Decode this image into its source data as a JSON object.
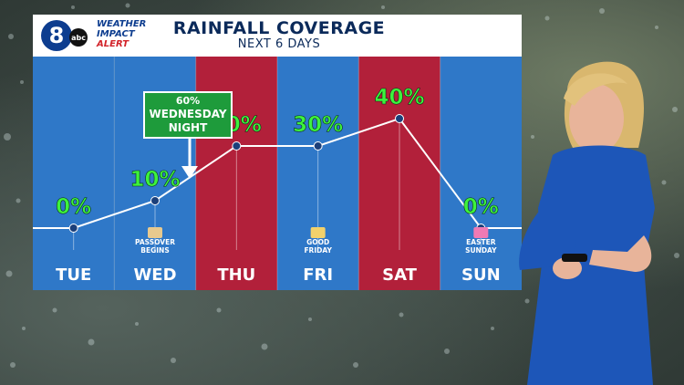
{
  "header": {
    "station": "8",
    "network": "abc",
    "brand_line1": "WEATHER",
    "brand_line2": "IMPACT",
    "brand_line3": "ALERT",
    "title": "RAINFALL COVERAGE",
    "subtitle": "NEXT 6 DAYS"
  },
  "callout": {
    "line1": "60%",
    "line2": "WEDNESDAY",
    "line3": "NIGHT"
  },
  "events": [
    {
      "day": "WED",
      "label1": "PASSOVER",
      "label2": "BEGINS",
      "icon": "matzah-icon"
    },
    {
      "day": "FRI",
      "label1": "GOOD",
      "label2": "FRIDAY",
      "icon": "cross-icon"
    },
    {
      "day": "SUN",
      "label1": "EASTER",
      "label2": "SUNDAY",
      "icon": "easter-egg-icon"
    }
  ],
  "colors": {
    "dry_column": "#2f78c8",
    "wet_column": "#b2203a",
    "value_text": "#3df23d",
    "line": "#ffffff",
    "point": "#1b3f7a"
  },
  "chart_data": {
    "type": "line",
    "title": "RAINFALL COVERAGE",
    "subtitle": "NEXT 6 DAYS",
    "categories": [
      "TUE",
      "WED",
      "THU",
      "FRI",
      "SAT",
      "SUN"
    ],
    "values": [
      0,
      10,
      30,
      30,
      40,
      0
    ],
    "labels": [
      "0%",
      "10%",
      "30%",
      "30%",
      "40%",
      "0%"
    ],
    "highlighted": [
      false,
      false,
      true,
      false,
      true,
      false
    ],
    "unit": "%",
    "ylim": [
      0,
      100
    ],
    "annotation": "60% WEDNESDAY NIGHT",
    "grid": false,
    "legend": "none"
  }
}
